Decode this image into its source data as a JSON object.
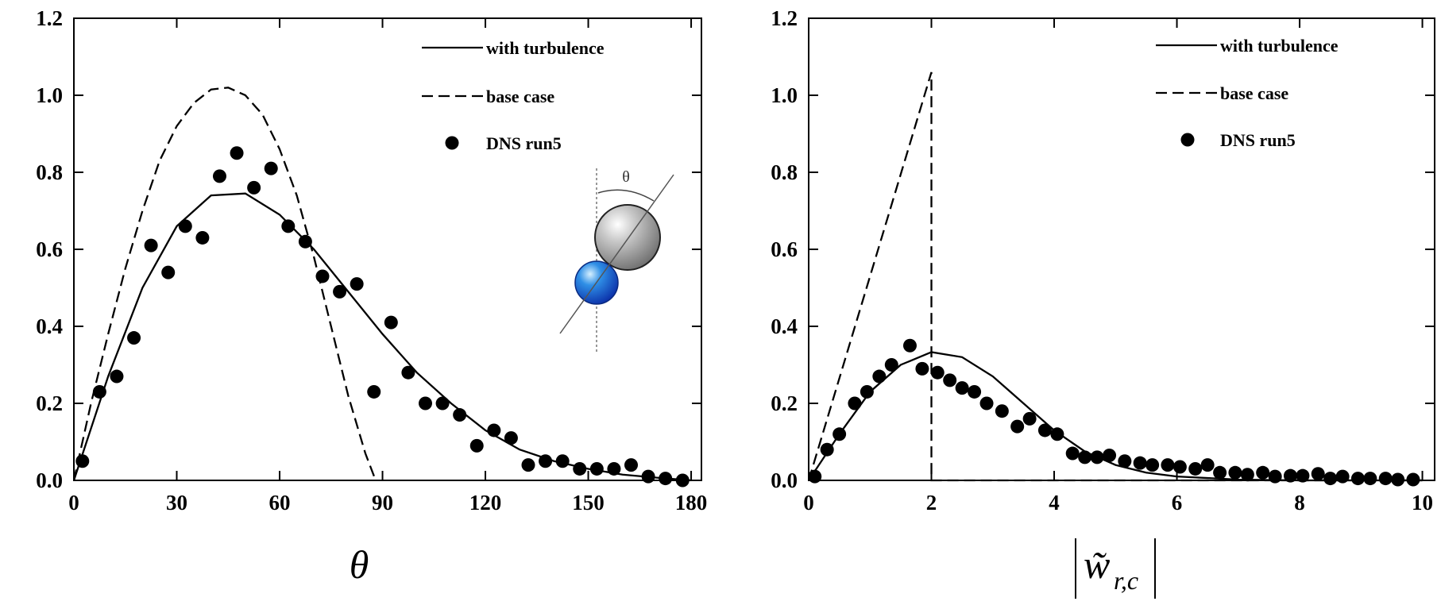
{
  "chart_data": [
    {
      "type": "line",
      "x_label": "θ",
      "inset_label": "θ",
      "xlim": [
        0,
        183
      ],
      "ylim": [
        0,
        1.2
      ],
      "xticks": [
        0,
        30,
        60,
        90,
        120,
        150,
        180
      ],
      "yticks": [
        {
          "value": 0,
          "label": "0.0"
        },
        0.2,
        0.4,
        0.6,
        0.8,
        {
          "value": 1,
          "label": "1.0"
        },
        1.2
      ],
      "series": [
        {
          "name": "with turbulence",
          "color": "#000000",
          "style": "solid",
          "x": [
            0,
            10,
            20,
            30,
            40,
            50,
            60,
            70,
            80,
            90,
            100,
            110,
            120,
            130,
            140,
            150,
            160,
            170,
            180
          ],
          "values": [
            0,
            0.27,
            0.5,
            0.66,
            0.74,
            0.745,
            0.69,
            0.6,
            0.49,
            0.38,
            0.28,
            0.2,
            0.13,
            0.08,
            0.05,
            0.03,
            0.015,
            0.007,
            0
          ]
        },
        {
          "name": "base case",
          "color": "#000000",
          "style": "dashed",
          "x": [
            0,
            5,
            10,
            15,
            20,
            25,
            30,
            35,
            40,
            45,
            50,
            55,
            60,
            65,
            70,
            75,
            80,
            85,
            88
          ],
          "values": [
            0,
            0.2,
            0.38,
            0.55,
            0.7,
            0.83,
            0.92,
            0.98,
            1.015,
            1.02,
            1.0,
            0.95,
            0.86,
            0.74,
            0.58,
            0.4,
            0.22,
            0.07,
            0
          ]
        },
        {
          "name": "DNS run5",
          "color": "#000000",
          "style": "markers",
          "x": [
            2.5,
            7.5,
            12.5,
            17.5,
            22.5,
            27.5,
            32.5,
            37.5,
            42.5,
            47.5,
            52.5,
            57.5,
            62.5,
            67.5,
            72.5,
            77.5,
            82.5,
            87.5,
            92.5,
            97.5,
            102.5,
            107.5,
            112.5,
            117.5,
            122.5,
            127.5,
            132.5,
            137.5,
            142.5,
            147.5,
            152.5,
            157.5,
            162.5,
            167.5,
            172.5,
            177.5
          ],
          "values": [
            0.05,
            0.23,
            0.27,
            0.37,
            0.61,
            0.54,
            0.66,
            0.63,
            0.79,
            0.85,
            0.76,
            0.81,
            0.66,
            0.62,
            0.53,
            0.49,
            0.51,
            0.23,
            0.41,
            0.28,
            0.2,
            0.2,
            0.17,
            0.09,
            0.13,
            0.11,
            0.04,
            0.05,
            0.05,
            0.03,
            0.03,
            0.03,
            0.04,
            0.01,
            0.005,
            0
          ]
        }
      ]
    },
    {
      "type": "line",
      "x_label": "w̃",
      "x_label_sub": "r,c",
      "xlim": [
        0,
        10.2
      ],
      "ylim": [
        0,
        1.2
      ],
      "xticks": [
        0,
        2,
        4,
        6,
        8,
        10
      ],
      "yticks": [
        {
          "value": 0,
          "label": "0.0"
        },
        0.2,
        0.4,
        0.6,
        0.8,
        {
          "value": 1,
          "label": "1.0"
        },
        1.2
      ],
      "series": [
        {
          "name": "with turbulence",
          "color": "#000000",
          "style": "solid",
          "x": [
            0,
            0.5,
            1,
            1.5,
            2,
            2.5,
            3,
            3.5,
            4,
            4.5,
            5,
            5.5,
            6,
            7,
            8,
            10
          ],
          "values": [
            0,
            0.12,
            0.23,
            0.3,
            0.333,
            0.32,
            0.27,
            0.2,
            0.13,
            0.075,
            0.04,
            0.02,
            0.01,
            0.002,
            0,
            0
          ]
        },
        {
          "name": "base case",
          "color": "#000000",
          "style": "dashed",
          "x": [
            0,
            2,
            2,
            10
          ],
          "values": [
            0,
            1.06,
            0,
            0
          ]
        },
        {
          "name": "DNS run5",
          "color": "#000000",
          "style": "markers",
          "x": [
            0.1,
            0.3,
            0.5,
            0.75,
            0.95,
            1.15,
            1.35,
            1.65,
            1.85,
            2.1,
            2.3,
            2.5,
            2.7,
            2.9,
            3.15,
            3.4,
            3.6,
            3.85,
            4.05,
            4.3,
            4.5,
            4.7,
            4.9,
            5.15,
            5.4,
            5.6,
            5.85,
            6.05,
            6.3,
            6.5,
            6.7,
            6.95,
            7.15,
            7.4,
            7.6,
            7.85,
            8.05,
            8.3,
            8.5,
            8.7,
            8.95,
            9.15,
            9.4,
            9.6,
            9.85
          ],
          "values": [
            0.01,
            0.08,
            0.12,
            0.2,
            0.23,
            0.27,
            0.3,
            0.35,
            0.29,
            0.28,
            0.26,
            0.24,
            0.23,
            0.2,
            0.18,
            0.14,
            0.16,
            0.13,
            0.12,
            0.07,
            0.06,
            0.06,
            0.065,
            0.05,
            0.045,
            0.04,
            0.04,
            0.035,
            0.03,
            0.04,
            0.02,
            0.02,
            0.015,
            0.02,
            0.01,
            0.012,
            0.012,
            0.017,
            0.005,
            0.01,
            0.005,
            0.005,
            0.005,
            0.002,
            0.002
          ]
        }
      ]
    }
  ]
}
